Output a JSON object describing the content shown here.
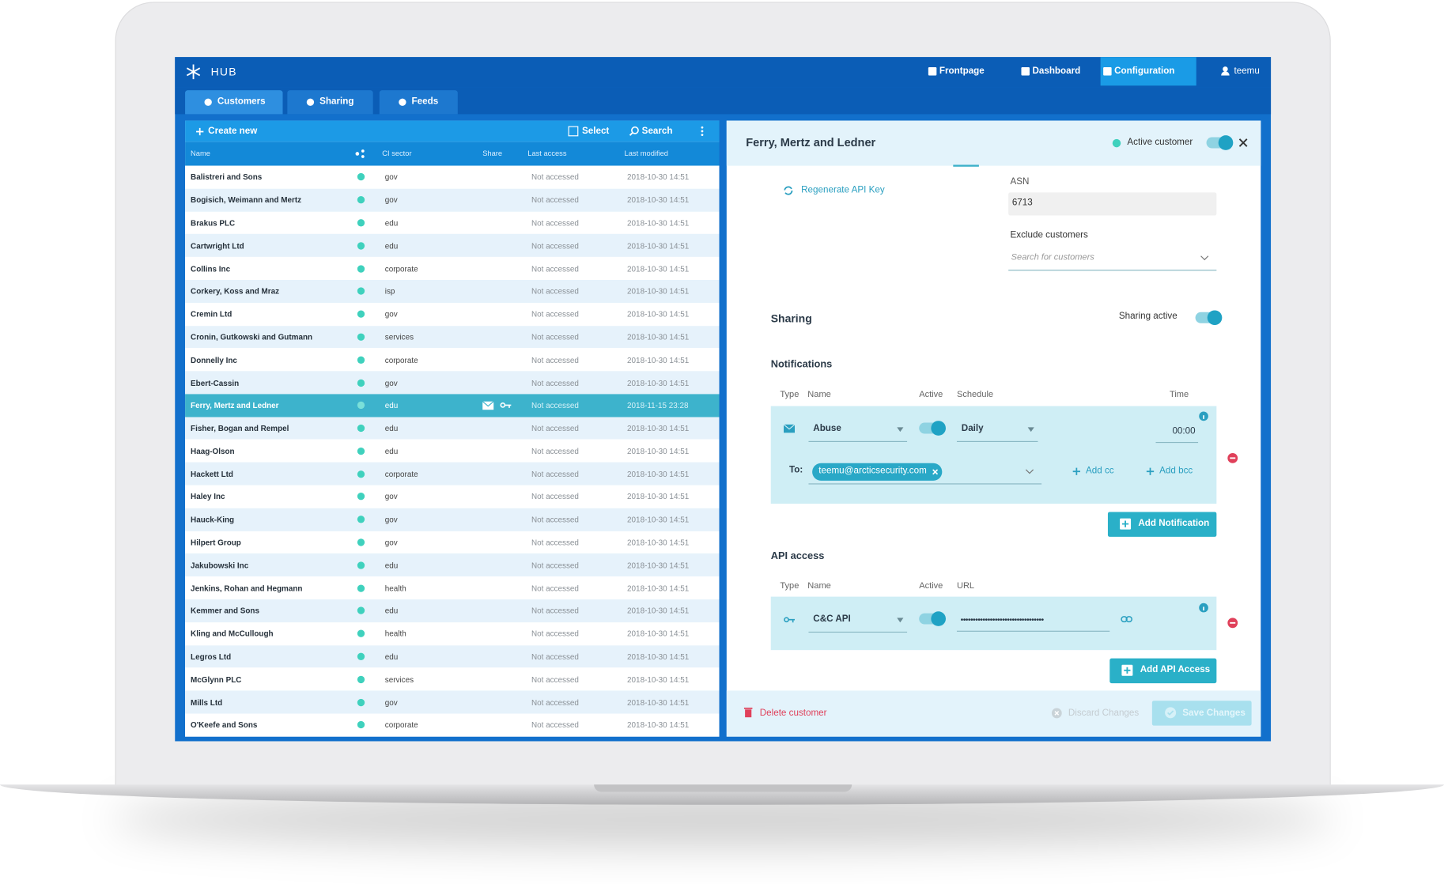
{
  "header": {
    "logo": "HUB",
    "nav": [
      "Frontpage",
      "Dashboard",
      "Configuration"
    ],
    "user": "teemu"
  },
  "tabs": [
    "Customers",
    "Sharing",
    "Feeds"
  ],
  "list": {
    "toolbar": {
      "create": "Create new",
      "select": "Select",
      "search": "Search"
    },
    "columns": [
      "Name",
      "CI sector",
      "Share",
      "Last access",
      "Last modified"
    ],
    "rows": [
      [
        "Balistreri and Sons",
        "gov",
        "Not accessed",
        "2018-10-30 14:51"
      ],
      [
        "Bogisich, Weimann and Mertz",
        "gov",
        "Not accessed",
        "2018-10-30 14:51"
      ],
      [
        "Brakus PLC",
        "edu",
        "Not accessed",
        "2018-10-30 14:51"
      ],
      [
        "Cartwright Ltd",
        "edu",
        "Not accessed",
        "2018-10-30 14:51"
      ],
      [
        "Collins Inc",
        "corporate",
        "Not accessed",
        "2018-10-30 14:51"
      ],
      [
        "Corkery, Koss and Mraz",
        "isp",
        "Not accessed",
        "2018-10-30 14:51"
      ],
      [
        "Cremin Ltd",
        "gov",
        "Not accessed",
        "2018-10-30 14:51"
      ],
      [
        "Cronin, Gutkowski and Gutmann",
        "services",
        "Not accessed",
        "2018-10-30 14:51"
      ],
      [
        "Donnelly Inc",
        "corporate",
        "Not accessed",
        "2018-10-30 14:51"
      ],
      [
        "Ebert-Cassin",
        "gov",
        "Not accessed",
        "2018-10-30 14:51"
      ],
      [
        "Ferry, Mertz and Ledner",
        "edu",
        "Not accessed",
        "2018-11-15 23:28"
      ],
      [
        "Fisher, Bogan and Rempel",
        "edu",
        "Not accessed",
        "2018-10-30 14:51"
      ],
      [
        "Haag-Olson",
        "edu",
        "Not accessed",
        "2018-10-30 14:51"
      ],
      [
        "Hackett Ltd",
        "corporate",
        "Not accessed",
        "2018-10-30 14:51"
      ],
      [
        "Haley Inc",
        "gov",
        "Not accessed",
        "2018-10-30 14:51"
      ],
      [
        "Hauck-King",
        "gov",
        "Not accessed",
        "2018-10-30 14:51"
      ],
      [
        "Hilpert Group",
        "gov",
        "Not accessed",
        "2018-10-30 14:51"
      ],
      [
        "Jakubowski Inc",
        "edu",
        "Not accessed",
        "2018-10-30 14:51"
      ],
      [
        "Jenkins, Rohan and Hegmann",
        "health",
        "Not accessed",
        "2018-10-30 14:51"
      ],
      [
        "Kemmer and Sons",
        "edu",
        "Not accessed",
        "2018-10-30 14:51"
      ],
      [
        "Kling and McCullough",
        "health",
        "Not accessed",
        "2018-10-30 14:51"
      ],
      [
        "Legros Ltd",
        "edu",
        "Not accessed",
        "2018-10-30 14:51"
      ],
      [
        "McGlynn PLC",
        "services",
        "Not accessed",
        "2018-10-30 14:51"
      ],
      [
        "Mills Ltd",
        "gov",
        "Not accessed",
        "2018-10-30 14:51"
      ],
      [
        "O'Keefe and Sons",
        "corporate",
        "Not accessed",
        "2018-10-30 14:51"
      ]
    ]
  },
  "detail": {
    "title": "Ferry, Mertz and Ledner",
    "active_label": "Active customer",
    "regenerate": "Regenerate API Key",
    "asn_label": "ASN",
    "asn": "6713",
    "exclude_label": "Exclude customers",
    "exclude_placeholder": "Search for customers",
    "sharing": {
      "title": "Sharing",
      "toggle_label": "Sharing active"
    },
    "notifications": {
      "title": "Notifications",
      "columns": [
        "Type",
        "Name",
        "Active",
        "Schedule",
        "Time"
      ],
      "name": "Abuse",
      "schedule": "Daily",
      "time": "00:00",
      "to_label": "To:",
      "recipient": "teemu@arcticsecurity.com",
      "add_cc": "Add cc",
      "add_bcc": "Add bcc",
      "add_button": "Add Notification"
    },
    "api": {
      "title": "API access",
      "columns": [
        "Type",
        "Name",
        "Active",
        "URL"
      ],
      "name": "C&C API",
      "url": "••••••••••••••••••••••••••••••••••",
      "add_button": "Add API Access"
    },
    "footer": {
      "delete": "Delete customer",
      "discard": "Discard Changes",
      "save": "Save Changes"
    }
  }
}
